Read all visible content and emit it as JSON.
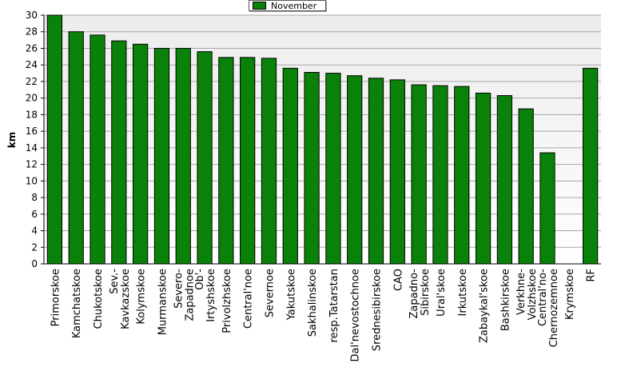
{
  "chart_data": {
    "type": "bar",
    "ylabel": "km",
    "ylim": [
      0,
      30
    ],
    "yticks": [
      0,
      2,
      4,
      6,
      8,
      10,
      12,
      14,
      16,
      18,
      20,
      22,
      24,
      26,
      28,
      30
    ],
    "grid": true,
    "legend_position": "top-center",
    "series": [
      {
        "name": "November",
        "color": "#0a820a",
        "values": [
          30.0,
          28.0,
          27.6,
          26.9,
          26.5,
          26.0,
          26.0,
          25.6,
          24.9,
          24.9,
          24.8,
          23.6,
          23.1,
          23.0,
          22.7,
          22.4,
          22.2,
          21.6,
          21.5,
          21.4,
          20.6,
          20.3,
          18.7,
          13.4,
          null,
          23.6
        ]
      }
    ],
    "categories": [
      "Primorskoe",
      "Kamchatskoe",
      "Chukotskoe",
      "Sev.-Kavkazskoe",
      "Kolymskoe",
      "Murmanskoe",
      "Severo-Zapadnoe",
      "Ob'-Irtyshskoe",
      "Privolzhskoe",
      "Central'noe",
      "Severnoe",
      "Yakutskoe",
      "Sakhalinskoe",
      "resp.Tatarstan",
      "Dal'nevostochnoe",
      "Srednesibirskoe",
      "CAO",
      "Zapadno-Sibirskoe",
      "Ural'skoe",
      "Irkutskoe",
      "Zabaykal'skoe",
      "Bashkirskoe",
      "Verkhne-Volzhskoe",
      "Central'no-Chernozemnoe",
      "Krymskoe",
      "RF"
    ],
    "category_lines": [
      [
        "Primorskoe"
      ],
      [
        "Kamchatskoe"
      ],
      [
        "Chukotskoe"
      ],
      [
        "Sev.-",
        "Kavkazskoe"
      ],
      [
        "Kolymskoe"
      ],
      [
        "Murmanskoe"
      ],
      [
        "Severo-",
        "Zapadnoe"
      ],
      [
        "Ob'-",
        "Irtyshskoe"
      ],
      [
        "Privolzhskoe"
      ],
      [
        "Central'noe"
      ],
      [
        "Severnoe"
      ],
      [
        "Yakutskoe"
      ],
      [
        "Sakhalinskoe"
      ],
      [
        "resp.Tatarstan"
      ],
      [
        "Dal'nevostochnoe"
      ],
      [
        "Srednesibirskoe"
      ],
      [
        "CAO"
      ],
      [
        "Zapadno-",
        "Sibirskoe"
      ],
      [
        "Ural'skoe"
      ],
      [
        "Irkutskoe"
      ],
      [
        "Zabaykal'skoe"
      ],
      [
        "Bashkirskoe"
      ],
      [
        "Verkhne-",
        "Volzhskoe"
      ],
      [
        "Central'no-",
        "Chernozemnoe"
      ],
      [
        "Krymskoe"
      ],
      [
        "RF"
      ]
    ]
  }
}
